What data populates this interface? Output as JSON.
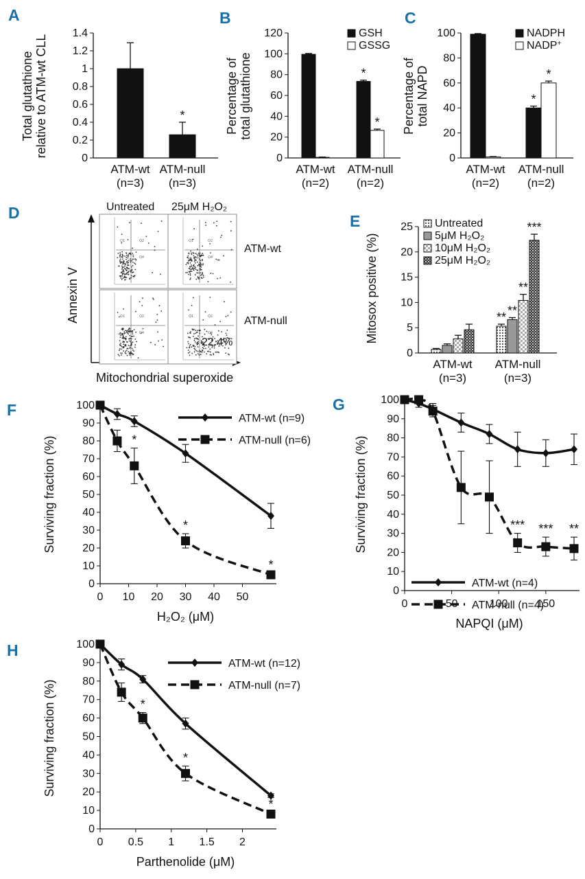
{
  "chart_data": [
    {
      "id": "A",
      "panel_label": "A",
      "type": "bar",
      "categories": [
        "ATM-wt",
        "ATM-null"
      ],
      "category_sub": [
        "(n=3)",
        "(n=3)"
      ],
      "values": [
        1.0,
        0.26
      ],
      "errors": [
        0.29,
        0.14
      ],
      "significance": [
        "",
        "*"
      ],
      "ylabel_lines": [
        "Total glutathione",
        "relative to ATM-wt CLL"
      ],
      "ylim": [
        0,
        1.4
      ],
      "yticks": [
        "0",
        "0.2",
        "0.4",
        "0.6",
        "0.8",
        "1",
        "1.2",
        "1.4"
      ]
    },
    {
      "id": "B",
      "panel_label": "B",
      "type": "bar",
      "categories": [
        "ATM-wt",
        "ATM-null"
      ],
      "category_sub": [
        "(n=2)",
        "(n=2)"
      ],
      "series": [
        {
          "name": "GSH",
          "fill": "#111111",
          "values": [
            99.5,
            73.5
          ],
          "errors": [
            0.8,
            1.2
          ],
          "significance": [
            "",
            "*"
          ]
        },
        {
          "name": "GSSG",
          "fill": "#ffffff",
          "values": [
            0.6,
            26.5
          ],
          "errors": [
            0.3,
            1.2
          ],
          "significance": [
            "",
            "*"
          ]
        }
      ],
      "ylabel_lines": [
        "Percentage of",
        "total glutathione"
      ],
      "ylim": [
        0,
        120
      ],
      "yticks": [
        "0",
        "20",
        "40",
        "60",
        "80",
        "100",
        "120"
      ]
    },
    {
      "id": "C",
      "panel_label": "C",
      "type": "bar",
      "categories": [
        "ATM-wt",
        "ATM-null"
      ],
      "category_sub": [
        "(n=2)",
        "(n=2)"
      ],
      "series": [
        {
          "name": "NADPH",
          "fill": "#111111",
          "values": [
            99,
            40
          ],
          "errors": [
            0.5,
            1.5
          ],
          "significance": [
            "",
            "*"
          ]
        },
        {
          "name": "NADP",
          "name_sup": "+",
          "fill": "#ffffff",
          "values": [
            0.8,
            60
          ],
          "errors": [
            0.3,
            1.5
          ],
          "significance": [
            "",
            "*"
          ]
        }
      ],
      "ylabel_lines": [
        "Percentage of",
        "total NAPD"
      ],
      "ylim": [
        0,
        100
      ],
      "yticks": [
        "0",
        "20",
        "40",
        "60",
        "80",
        "100"
      ]
    },
    {
      "id": "E",
      "panel_label": "E",
      "type": "bar",
      "categories": [
        "ATM-wt",
        "ATM-null"
      ],
      "category_sub": [
        "(n=3)",
        "(n=3)"
      ],
      "series": [
        {
          "name": "Untreated",
          "fill": "url(#patDots)",
          "values": [
            0.7,
            5.3
          ],
          "errors": [
            0.2,
            0.4
          ],
          "significance": [
            "",
            "**"
          ]
        },
        {
          "name": "5μM H₂O₂",
          "fill": "#999999",
          "values": [
            1.5,
            6.6
          ],
          "errors": [
            0.3,
            0.4
          ],
          "significance": [
            "",
            "**"
          ]
        },
        {
          "name": "10μM H₂O₂",
          "fill": "url(#patCheck)",
          "values": [
            2.8,
            10.4
          ],
          "errors": [
            0.7,
            1.2
          ],
          "significance": [
            "",
            "**"
          ]
        },
        {
          "name": "25μM H₂O₂",
          "fill": "url(#patDark)",
          "values": [
            4.6,
            22.3
          ],
          "errors": [
            1.1,
            1.2
          ],
          "significance": [
            "",
            "***"
          ]
        }
      ],
      "ylabel": "Mitosox positive (%)",
      "ylim": [
        0,
        25
      ],
      "yticks": [
        "0",
        "5",
        "10",
        "15",
        "20",
        "25"
      ]
    },
    {
      "id": "F",
      "panel_label": "F",
      "type": "line",
      "xlabel": "H₂O₂ (μM)",
      "ylabel": "Surviving fraction (%)",
      "xlim": [
        0,
        60
      ],
      "ylim": [
        0,
        100
      ],
      "xticks": [
        0,
        10,
        20,
        30,
        40,
        50
      ],
      "yticks": [
        0,
        10,
        20,
        30,
        40,
        50,
        60,
        70,
        80,
        90,
        100
      ],
      "series": [
        {
          "name": "ATM-wt (n=9)",
          "style": "solid",
          "marker": "diamond",
          "x": [
            0,
            6,
            12,
            30,
            60
          ],
          "y": [
            100,
            95,
            91,
            73,
            38
          ],
          "errors": [
            0,
            3,
            3,
            5,
            7
          ],
          "significance": [
            "",
            "",
            "",
            "",
            ""
          ]
        },
        {
          "name": "ATM-null (n=6)",
          "style": "dashed",
          "marker": "square",
          "x": [
            0,
            6,
            12,
            30,
            60
          ],
          "y": [
            100,
            80,
            66,
            24,
            5
          ],
          "errors": [
            0,
            6,
            10,
            4,
            1
          ],
          "significance": [
            "",
            "",
            "*",
            "*",
            "*"
          ]
        }
      ]
    },
    {
      "id": "G",
      "panel_label": "G",
      "type": "line",
      "xlabel": "NAPQI (μM)",
      "ylabel": "Surviving fraction (%)",
      "xlim": [
        0,
        180
      ],
      "ylim": [
        0,
        100
      ],
      "xticks": [
        0,
        50,
        100,
        150
      ],
      "yticks": [
        0,
        10,
        20,
        30,
        40,
        50,
        60,
        70,
        80,
        90,
        100
      ],
      "series": [
        {
          "name": "ATM-wt (n=4)",
          "style": "solid",
          "marker": "diamond",
          "x": [
            0,
            15,
            30,
            60,
            90,
            120,
            150,
            180
          ],
          "y": [
            100,
            98,
            95,
            88,
            82,
            74,
            72,
            74
          ],
          "errors": [
            0,
            2,
            3,
            5,
            5,
            9,
            7,
            8
          ],
          "significance": [
            "",
            "",
            "",
            "",
            "",
            "",
            "",
            ""
          ]
        },
        {
          "name": "ATM-null (n=4)",
          "style": "dashed",
          "marker": "square",
          "x": [
            0,
            15,
            30,
            60,
            90,
            120,
            150,
            180
          ],
          "y": [
            100,
            100,
            94,
            54,
            49,
            25,
            23,
            22
          ],
          "errors": [
            0,
            1,
            3,
            19,
            19,
            5,
            5,
            6
          ],
          "significance": [
            "",
            "",
            "",
            "",
            "",
            "***",
            "***",
            "**"
          ]
        }
      ]
    },
    {
      "id": "H",
      "panel_label": "H",
      "type": "line",
      "xlabel": "Parthenolide (μM)",
      "ylabel": "Surviving fraction (%)",
      "xlim": [
        0,
        2.4
      ],
      "ylim": [
        0,
        100
      ],
      "xticks": [
        "0",
        "0.5",
        "1",
        "1.5",
        "2"
      ],
      "yticks": [
        0,
        10,
        20,
        30,
        40,
        50,
        60,
        70,
        80,
        90,
        100
      ],
      "series": [
        {
          "name": "ATM-wt (n=12)",
          "style": "solid",
          "marker": "diamond",
          "x": [
            0,
            0.3,
            0.6,
            1.2,
            2.4
          ],
          "y": [
            100,
            89,
            81,
            57,
            18
          ],
          "errors": [
            0,
            3,
            2,
            3,
            1
          ],
          "significance": [
            "",
            "",
            "",
            "",
            ""
          ]
        },
        {
          "name": "ATM-null (n=7)",
          "style": "dashed",
          "marker": "square",
          "x": [
            0,
            0.3,
            0.6,
            1.2,
            2.4
          ],
          "y": [
            100,
            74,
            60,
            30,
            8
          ],
          "errors": [
            0,
            5,
            3,
            4,
            1
          ],
          "significance": [
            "",
            "",
            "*",
            "*",
            "*"
          ]
        }
      ]
    }
  ],
  "panel_d": {
    "label": "D",
    "col_headers": [
      "Untreated",
      "25μM H₂O₂"
    ],
    "row_labels": [
      "ATM-wt",
      "ATM-null"
    ],
    "y_axis_label": "Annexin V",
    "x_axis_label": "Mitochondrial superoxide",
    "percentage": "22.4%"
  }
}
